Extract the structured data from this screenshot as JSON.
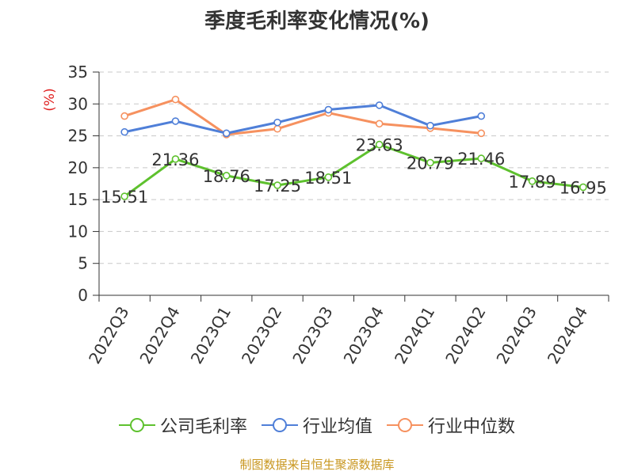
{
  "chart_data": {
    "type": "line",
    "title": "季度毛利率变化情况(%)",
    "ylabel": "(%)",
    "xlabel": "",
    "categories": [
      "2022Q3",
      "2022Q4",
      "2023Q1",
      "2023Q2",
      "2023Q3",
      "2023Q4",
      "2024Q1",
      "2024Q2",
      "2024Q3",
      "2024Q4"
    ],
    "ylim": [
      0,
      35
    ],
    "yticks": [
      0,
      5,
      10,
      15,
      20,
      25,
      30,
      35
    ],
    "grid": true,
    "legend_position": "bottom",
    "series": [
      {
        "name": "公司毛利率",
        "color": "#5ec12e",
        "values": [
          15.51,
          21.36,
          18.76,
          17.25,
          18.51,
          23.63,
          20.79,
          21.46,
          17.89,
          16.95
        ],
        "data_labels": [
          "15.51",
          "21.36",
          "18.76",
          "17.25",
          "18.51",
          "23.63",
          "20.79",
          "21.46",
          "17.89",
          "16.95"
        ]
      },
      {
        "name": "行业均值",
        "color": "#4f7fd8",
        "values": [
          25.6,
          27.3,
          25.4,
          27.1,
          29.1,
          29.8,
          26.6,
          28.1,
          null,
          null
        ]
      },
      {
        "name": "行业中位数",
        "color": "#f6915f",
        "values": [
          28.1,
          30.7,
          25.2,
          26.1,
          28.6,
          26.9,
          26.2,
          25.4,
          null,
          null
        ]
      }
    ]
  },
  "footer": {
    "text": "制图数据来自恒生聚源数据库",
    "color": "#c8961e"
  },
  "ylabel_color": "#e02020"
}
